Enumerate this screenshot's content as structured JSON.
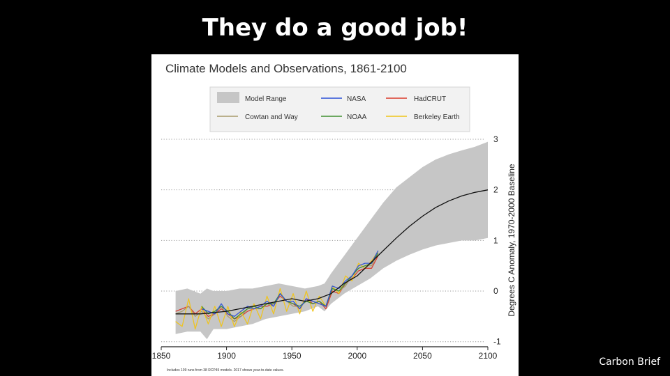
{
  "slide": {
    "title": "They do a good job!",
    "credit": "Carbon Brief"
  },
  "chart_data": {
    "type": "line",
    "title": "Climate Models and Observations, 1861-2100",
    "ylabel": "Degrees C Anomaly, 1970-2000 Baseline",
    "xlabel": "",
    "footnote": "Includes 109 runs from 38 RCP45 models. 2017 shows year-to-date values.",
    "xlim": [
      1850,
      2100
    ],
    "ylim": [
      -1.1,
      3.0
    ],
    "xticks": [
      1850,
      1900,
      1950,
      2000,
      2050,
      2100
    ],
    "yticks": [
      -1,
      0,
      1,
      2,
      3
    ],
    "grid": "horizontal dotted",
    "legend_position": "top",
    "legend": [
      {
        "label": "Model Range",
        "color": "#c6c6c6",
        "kind": "area"
      },
      {
        "label": "NASA",
        "color": "#2b50d8",
        "kind": "line"
      },
      {
        "label": "HadCRUT",
        "color": "#d93a2b",
        "kind": "line"
      },
      {
        "label": "Cowtan and Way",
        "color": "#a89a6a",
        "kind": "line"
      },
      {
        "label": "NOAA",
        "color": "#3f8f2f",
        "kind": "line"
      },
      {
        "label": "Berkeley Earth",
        "color": "#f0c419",
        "kind": "line"
      }
    ],
    "model_range": {
      "x": [
        1861,
        1870,
        1880,
        1885,
        1890,
        1900,
        1910,
        1920,
        1930,
        1940,
        1950,
        1960,
        1970,
        1975,
        1980,
        1990,
        2000,
        2010,
        2020,
        2030,
        2040,
        2050,
        2060,
        2070,
        2080,
        2090,
        2100
      ],
      "low": [
        -0.85,
        -0.8,
        -0.8,
        -0.95,
        -0.75,
        -0.75,
        -0.7,
        -0.65,
        -0.55,
        -0.5,
        -0.45,
        -0.4,
        -0.3,
        -0.4,
        -0.25,
        -0.05,
        0.1,
        0.25,
        0.45,
        0.6,
        0.72,
        0.82,
        0.9,
        0.95,
        1.0,
        1.0,
        1.05
      ],
      "high": [
        0.0,
        0.05,
        -0.05,
        0.05,
        0.0,
        0.0,
        0.05,
        0.05,
        0.1,
        0.15,
        0.1,
        0.05,
        0.1,
        0.15,
        0.35,
        0.7,
        1.05,
        1.4,
        1.75,
        2.05,
        2.25,
        2.45,
        2.6,
        2.7,
        2.78,
        2.85,
        2.95
      ]
    },
    "model_mean": {
      "x": [
        1861,
        1880,
        1900,
        1920,
        1940,
        1950,
        1960,
        1970,
        1980,
        1990,
        2000,
        2010,
        2020,
        2030,
        2040,
        2050,
        2060,
        2070,
        2080,
        2090,
        2100
      ],
      "y": [
        -0.45,
        -0.45,
        -0.4,
        -0.3,
        -0.2,
        -0.15,
        -0.2,
        -0.15,
        -0.05,
        0.15,
        0.3,
        0.55,
        0.8,
        1.05,
        1.28,
        1.48,
        1.65,
        1.78,
        1.88,
        1.95,
        2.0
      ]
    },
    "observation_years": [
      1861,
      1866,
      1871,
      1876,
      1881,
      1886,
      1891,
      1896,
      1901,
      1906,
      1911,
      1916,
      1921,
      1926,
      1931,
      1936,
      1941,
      1946,
      1951,
      1956,
      1961,
      1966,
      1971,
      1976,
      1981,
      1986,
      1991,
      1996,
      2001,
      2006,
      2011,
      2016
    ],
    "series": [
      {
        "name": "HadCRUT",
        "color": "#d93a2b",
        "x0": 1861,
        "values": [
          -0.4,
          -0.35,
          -0.3,
          -0.45,
          -0.35,
          -0.5,
          -0.45,
          -0.35,
          -0.45,
          -0.55,
          -0.5,
          -0.4,
          -0.35,
          -0.3,
          -0.3,
          -0.25,
          -0.1,
          -0.2,
          -0.25,
          -0.35,
          -0.15,
          -0.25,
          -0.2,
          -0.35,
          0.0,
          -0.05,
          0.15,
          0.25,
          0.4,
          0.45,
          0.45,
          0.7
        ]
      },
      {
        "name": "Cowtan and Way",
        "color": "#a89a6a",
        "x0": 1861,
        "values": [
          -0.45,
          -0.4,
          -0.3,
          -0.5,
          -0.4,
          -0.55,
          -0.45,
          -0.3,
          -0.5,
          -0.6,
          -0.5,
          -0.35,
          -0.35,
          -0.35,
          -0.25,
          -0.3,
          -0.05,
          -0.2,
          -0.3,
          -0.3,
          -0.2,
          -0.2,
          -0.25,
          -0.3,
          0.05,
          0.0,
          0.1,
          0.3,
          0.45,
          0.5,
          0.5,
          0.75
        ]
      },
      {
        "name": "Berkeley Earth",
        "color": "#f0c419",
        "x0": 1861,
        "values": [
          -0.6,
          -0.7,
          -0.15,
          -0.75,
          -0.3,
          -0.65,
          -0.3,
          -0.7,
          -0.3,
          -0.7,
          -0.4,
          -0.65,
          -0.25,
          -0.55,
          -0.1,
          -0.45,
          0.05,
          -0.4,
          -0.05,
          -0.45,
          0.0,
          -0.4,
          -0.1,
          -0.3,
          0.1,
          -0.05,
          0.3,
          0.2,
          0.55,
          0.45,
          0.6,
          0.78
        ]
      },
      {
        "name": "NOAA",
        "color": "#3f8f2f",
        "x0": 1881,
        "values": [
          -0.3,
          -0.45,
          -0.4,
          -0.3,
          -0.4,
          -0.55,
          -0.45,
          -0.35,
          -0.3,
          -0.35,
          -0.25,
          -0.25,
          -0.05,
          -0.2,
          -0.25,
          -0.3,
          -0.2,
          -0.25,
          -0.2,
          -0.3,
          0.05,
          0.0,
          0.15,
          0.3,
          0.45,
          0.5,
          0.55,
          0.75
        ]
      },
      {
        "name": "NASA",
        "color": "#2b50d8",
        "x0": 1881,
        "values": [
          -0.35,
          -0.4,
          -0.45,
          -0.25,
          -0.45,
          -0.5,
          -0.4,
          -0.3,
          -0.35,
          -0.3,
          -0.2,
          -0.3,
          -0.05,
          -0.2,
          -0.2,
          -0.35,
          -0.15,
          -0.2,
          -0.25,
          -0.3,
          0.1,
          0.05,
          0.2,
          0.3,
          0.5,
          0.55,
          0.55,
          0.8
        ]
      }
    ]
  }
}
